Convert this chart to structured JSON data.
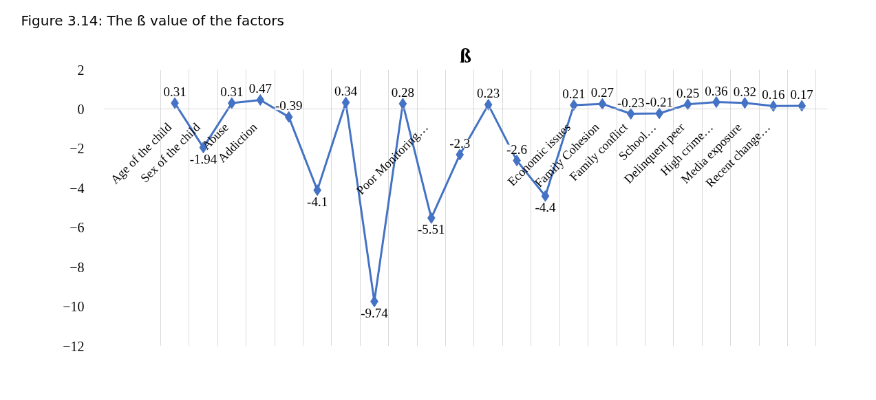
{
  "chart_data": {
    "type": "line",
    "title": "Figure 3.14: The ß value of the factors",
    "subtitle": "ß",
    "categories": [
      "Age of the child",
      "Sex of the child",
      "Abuse",
      "Addiction",
      null,
      null,
      null,
      null,
      null,
      "Poor Monitoring…",
      null,
      null,
      null,
      null,
      "Economic issues",
      "Family Cohesion",
      "Family conflict",
      "School…",
      "Delinquent peer",
      "High crime…",
      "Media exposure",
      "Recent change…",
      null
    ],
    "series": [
      {
        "color": "#4472c4",
        "values": [
          0.31,
          -1.94,
          0.31,
          0.47,
          -0.39,
          -4.1,
          0.34,
          -9.74,
          0.28,
          -5.51,
          -2.3,
          0.23,
          -2.6,
          -4.4,
          0.21,
          0.27,
          -0.23,
          -0.21,
          0.25,
          0.36,
          0.32,
          0.16,
          0.17
        ]
      }
    ],
    "ylim": [
      -12,
      2
    ],
    "yticks": [
      -12,
      -10,
      -8,
      -6,
      -4,
      -2,
      0,
      2
    ],
    "grid": "x",
    "marker": "diamond",
    "line_style": "solid",
    "data_labels": true
  }
}
